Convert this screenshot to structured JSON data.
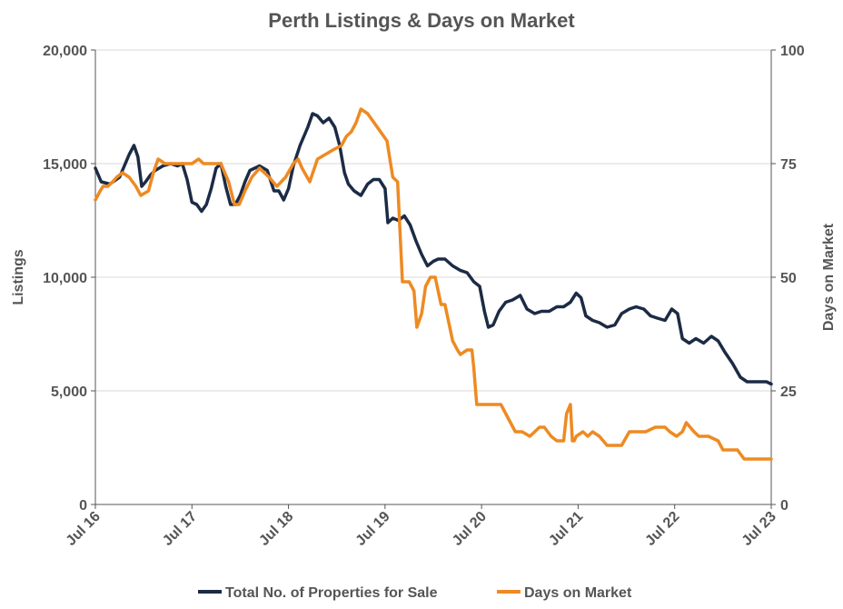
{
  "chart_data": {
    "type": "line",
    "title": "Perth Listings & Days on Market",
    "ylabel_left": "Listings",
    "ylabel_right": "Days on Market",
    "x_ticks": [
      "Jul 16",
      "Jul 17",
      "Jul 18",
      "Jul 19",
      "Jul 20",
      "Jul 21",
      "Jul 22",
      "Jul 23"
    ],
    "y_left_ticks": [
      "0",
      "5,000",
      "10,000",
      "15,000",
      "20,000"
    ],
    "y_right_ticks": [
      "0",
      "25",
      "50",
      "75",
      "100"
    ],
    "y_left_range": [
      0,
      20000
    ],
    "y_right_range": [
      0,
      100
    ],
    "x_range": [
      2016.5,
      2023.5
    ],
    "grid": "horizontal",
    "legend_position": "bottom",
    "colors": {
      "listings": "#1c2b45",
      "dom": "#ee8a22",
      "axis": "#555555",
      "grid": "#d9d9d9"
    },
    "series": [
      {
        "name": "Total No. of Properties for Sale",
        "axis": "left",
        "x": [
          2016.5,
          2016.56,
          2016.65,
          2016.75,
          2016.85,
          2016.9,
          2016.94,
          2016.98,
          2017.02,
          2017.07,
          2017.12,
          2017.2,
          2017.28,
          2017.35,
          2017.4,
          2017.45,
          2017.5,
          2017.55,
          2017.6,
          2017.65,
          2017.7,
          2017.75,
          2017.8,
          2017.85,
          2017.9,
          2017.95,
          2018.0,
          2018.05,
          2018.1,
          2018.15,
          2018.2,
          2018.28,
          2018.35,
          2018.4,
          2018.45,
          2018.5,
          2018.55,
          2018.62,
          2018.7,
          2018.75,
          2018.8,
          2018.86,
          2018.92,
          2018.98,
          2019.03,
          2019.08,
          2019.12,
          2019.18,
          2019.25,
          2019.32,
          2019.38,
          2019.44,
          2019.5,
          2019.53,
          2019.58,
          2019.64,
          2019.7,
          2019.76,
          2019.82,
          2019.88,
          2019.94,
          2020.0,
          2020.05,
          2020.12,
          2020.2,
          2020.28,
          2020.35,
          2020.42,
          2020.48,
          2020.53,
          2020.57,
          2020.62,
          2020.68,
          2020.75,
          2020.82,
          2020.9,
          2020.97,
          2021.05,
          2021.12,
          2021.2,
          2021.28,
          2021.35,
          2021.42,
          2021.48,
          2021.53,
          2021.58,
          2021.65,
          2021.72,
          2021.8,
          2021.88,
          2021.95,
          2022.03,
          2022.1,
          2022.18,
          2022.25,
          2022.32,
          2022.4,
          2022.47,
          2022.53,
          2022.58,
          2022.65,
          2022.72,
          2022.8,
          2022.88,
          2022.95,
          2023.02,
          2023.1,
          2023.18,
          2023.25,
          2023.35,
          2023.45,
          2023.5
        ],
        "values": [
          14800,
          14200,
          14100,
          14400,
          15400,
          15800,
          15300,
          14000,
          14200,
          14500,
          14700,
          14900,
          15000,
          14900,
          15000,
          14300,
          13300,
          13200,
          12900,
          13200,
          13900,
          14800,
          15000,
          14000,
          13200,
          13200,
          13600,
          14200,
          14700,
          14800,
          14900,
          14700,
          13800,
          13800,
          13400,
          13900,
          14900,
          15800,
          16600,
          17200,
          17100,
          16800,
          17000,
          16600,
          15800,
          14600,
          14100,
          13800,
          13600,
          14100,
          14300,
          14300,
          13900,
          12400,
          12600,
          12500,
          12700,
          12300,
          11600,
          11000,
          10500,
          10700,
          10800,
          10800,
          10500,
          10300,
          10200,
          9800,
          9600,
          8500,
          7800,
          7900,
          8500,
          8900,
          9000,
          9200,
          8600,
          8400,
          8500,
          8500,
          8700,
          8700,
          8900,
          9300,
          9100,
          8300,
          8100,
          8000,
          7800,
          7900,
          8400,
          8600,
          8700,
          8600,
          8300,
          8200,
          8100,
          8600,
          8400,
          7300,
          7100,
          7300,
          7100,
          7400,
          7200,
          6700,
          6200,
          5600,
          5400,
          5400,
          5400,
          5300
        ]
      },
      {
        "name": "Days on Market",
        "axis": "right",
        "x": [
          2016.5,
          2016.55,
          2016.58,
          2016.63,
          2016.68,
          2016.72,
          2016.78,
          2016.85,
          2016.92,
          2016.97,
          2017.05,
          2017.1,
          2017.15,
          2017.22,
          2017.28,
          2017.35,
          2017.42,
          2017.5,
          2017.57,
          2017.62,
          2017.72,
          2017.8,
          2017.88,
          2017.94,
          2017.99,
          2018.05,
          2018.12,
          2018.2,
          2018.3,
          2018.38,
          2018.47,
          2018.55,
          2018.6,
          2018.64,
          2018.72,
          2018.8,
          2018.88,
          2018.96,
          2019.05,
          2019.1,
          2019.15,
          2019.2,
          2019.25,
          2019.32,
          2019.42,
          2019.52,
          2019.58,
          2019.63,
          2019.68,
          2019.75,
          2019.8,
          2019.83,
          2019.88,
          2019.92,
          2019.97,
          2020.02,
          2020.08,
          2020.12,
          2020.2,
          2020.25,
          2020.28,
          2020.35,
          2020.4,
          2020.42,
          2020.45,
          2020.5,
          2020.58,
          2020.65,
          2020.7,
          2020.75,
          2020.8,
          2020.85,
          2020.92,
          2021.0,
          2021.1,
          2021.15,
          2021.22,
          2021.28,
          2021.35,
          2021.38,
          2021.42,
          2021.44,
          2021.46,
          2021.48,
          2021.55,
          2021.6,
          2021.65,
          2021.72,
          2021.8,
          2021.85,
          2021.95,
          2022.03,
          2022.1,
          2022.2,
          2022.3,
          2022.4,
          2022.45,
          2022.52,
          2022.58,
          2022.62,
          2022.7,
          2022.75,
          2022.8,
          2022.85,
          2022.95,
          2023.0,
          2023.05,
          2023.15,
          2023.22,
          2023.3,
          2023.4,
          2023.5
        ],
        "values": [
          67,
          69,
          70,
          70,
          71,
          72,
          73,
          72,
          70,
          68,
          69,
          73,
          76,
          75,
          75,
          75,
          75,
          75,
          76,
          75,
          75,
          75,
          71,
          66,
          66,
          69,
          72,
          74,
          72,
          70,
          72,
          75,
          76,
          74,
          71,
          76,
          77,
          78,
          79,
          81,
          82,
          84,
          87,
          86,
          83,
          80,
          72,
          71,
          49,
          49,
          47,
          39,
          42,
          48,
          50,
          50,
          44,
          44,
          36,
          34,
          33,
          34,
          34,
          30,
          22,
          22,
          22,
          22,
          22,
          20,
          18,
          16,
          16,
          15,
          17,
          17,
          15,
          14,
          14,
          20,
          22,
          14,
          14,
          15,
          16,
          15,
          16,
          15,
          13,
          13,
          13,
          16,
          16,
          16,
          17,
          17,
          16,
          15,
          16,
          18,
          16,
          15,
          15,
          15,
          14,
          12,
          12,
          12,
          10,
          10,
          10,
          10
        ]
      }
    ]
  }
}
